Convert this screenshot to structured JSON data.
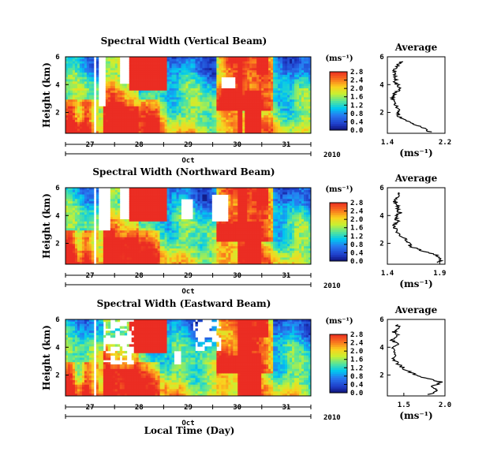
{
  "figure": {
    "xlabel": "Local Time (Day)",
    "month_label": "Oct",
    "year_label": "2010",
    "ylabel": "Height (km)",
    "colorbar_unit": "(ms⁻¹)",
    "profile_title": "Average",
    "profile_unit": "(ms⁻¹)"
  },
  "chart_data": [
    {
      "type": "heatmap",
      "title": "Spectral Width (Vertical Beam)",
      "xlabel": "",
      "ylabel": "Height (km)",
      "x_ticks": [
        "27",
        "28",
        "29",
        "30",
        "31"
      ],
      "y_ticks": [
        "6",
        "4",
        "2"
      ],
      "ylim": [
        0.5,
        6
      ],
      "colorbar": {
        "ticks": [
          "2.8",
          "2.4",
          "2.0",
          "1.6",
          "1.2",
          "0.8",
          "0.4",
          "0.0"
        ],
        "range": [
          0,
          2.8
        ]
      },
      "profile": {
        "title": "Average",
        "xlabel": "(ms⁻¹)",
        "x_ticks": [
          "1.4",
          "2.2"
        ],
        "xlim": [
          1.4,
          2.2
        ],
        "ylim": [
          0.5,
          6
        ],
        "y_ticks": [
          "6",
          "4",
          "2"
        ],
        "heights": [
          0.6,
          0.9,
          1.2,
          1.5,
          1.8,
          2.1,
          2.4,
          2.7,
          3.0,
          3.3,
          3.6,
          3.9,
          4.2,
          4.5,
          4.8,
          5.1,
          5.4,
          5.7
        ],
        "values": [
          2.0,
          1.88,
          1.74,
          1.62,
          1.55,
          1.55,
          1.53,
          1.48,
          1.47,
          1.5,
          1.55,
          1.56,
          1.5,
          1.52,
          1.48,
          1.51,
          1.55,
          1.6
        ]
      }
    },
    {
      "type": "heatmap",
      "title": "Spectral Width (Northward Beam)",
      "xlabel": "",
      "ylabel": "Height (km)",
      "x_ticks": [
        "27",
        "28",
        "29",
        "30",
        "31"
      ],
      "y_ticks": [
        "6",
        "4",
        "2"
      ],
      "ylim": [
        0.5,
        6
      ],
      "colorbar": {
        "ticks": [
          "2.8",
          "2.4",
          "2.0",
          "1.6",
          "1.2",
          "0.8",
          "0.4",
          "0.0"
        ],
        "range": [
          0,
          2.8
        ]
      },
      "profile": {
        "title": "Average",
        "xlabel": "(ms⁻¹)",
        "x_ticks": [
          "1.4",
          "1.9"
        ],
        "xlim": [
          1.4,
          1.95
        ],
        "ylim": [
          0.5,
          6
        ],
        "y_ticks": [
          "6",
          "4",
          "2"
        ],
        "heights": [
          0.6,
          0.9,
          1.2,
          1.5,
          1.8,
          2.1,
          2.4,
          2.7,
          3.0,
          3.3,
          3.6,
          3.9,
          4.2,
          4.5,
          4.8,
          5.1,
          5.4,
          5.7
        ],
        "values": [
          1.88,
          1.92,
          1.86,
          1.72,
          1.62,
          1.6,
          1.55,
          1.5,
          1.48,
          1.46,
          1.5,
          1.47,
          1.52,
          1.49,
          1.5,
          1.46,
          1.5,
          1.52
        ]
      }
    },
    {
      "type": "heatmap",
      "title": "Spectral Width (Eastward Beam)",
      "xlabel": "Local Time (Day)",
      "ylabel": "Height (km)",
      "x_ticks": [
        "27",
        "28",
        "29",
        "30",
        "31"
      ],
      "y_ticks": [
        "6",
        "4",
        "2"
      ],
      "ylim": [
        0.5,
        6
      ],
      "colorbar": {
        "ticks": [
          "2.8",
          "2.4",
          "2.0",
          "1.6",
          "1.2",
          "0.8",
          "0.4",
          "0.0"
        ],
        "range": [
          0,
          2.8
        ]
      },
      "profile": {
        "title": "Average",
        "xlabel": "(ms⁻¹)",
        "x_ticks": [
          "1.5",
          "2.0"
        ],
        "xlim": [
          1.3,
          2.0
        ],
        "ylim": [
          0.5,
          6
        ],
        "y_ticks": [
          "6",
          "4",
          "2"
        ],
        "heights": [
          0.6,
          0.9,
          1.2,
          1.5,
          1.8,
          2.1,
          2.4,
          2.7,
          3.0,
          3.3,
          3.6,
          3.9,
          4.2,
          4.5,
          4.8,
          5.1,
          5.4,
          5.7
        ],
        "values": [
          1.8,
          1.92,
          1.85,
          1.96,
          1.75,
          1.62,
          1.52,
          1.45,
          1.4,
          1.37,
          1.4,
          1.36,
          1.42,
          1.36,
          1.44,
          1.38,
          1.45,
          1.4
        ]
      }
    }
  ]
}
